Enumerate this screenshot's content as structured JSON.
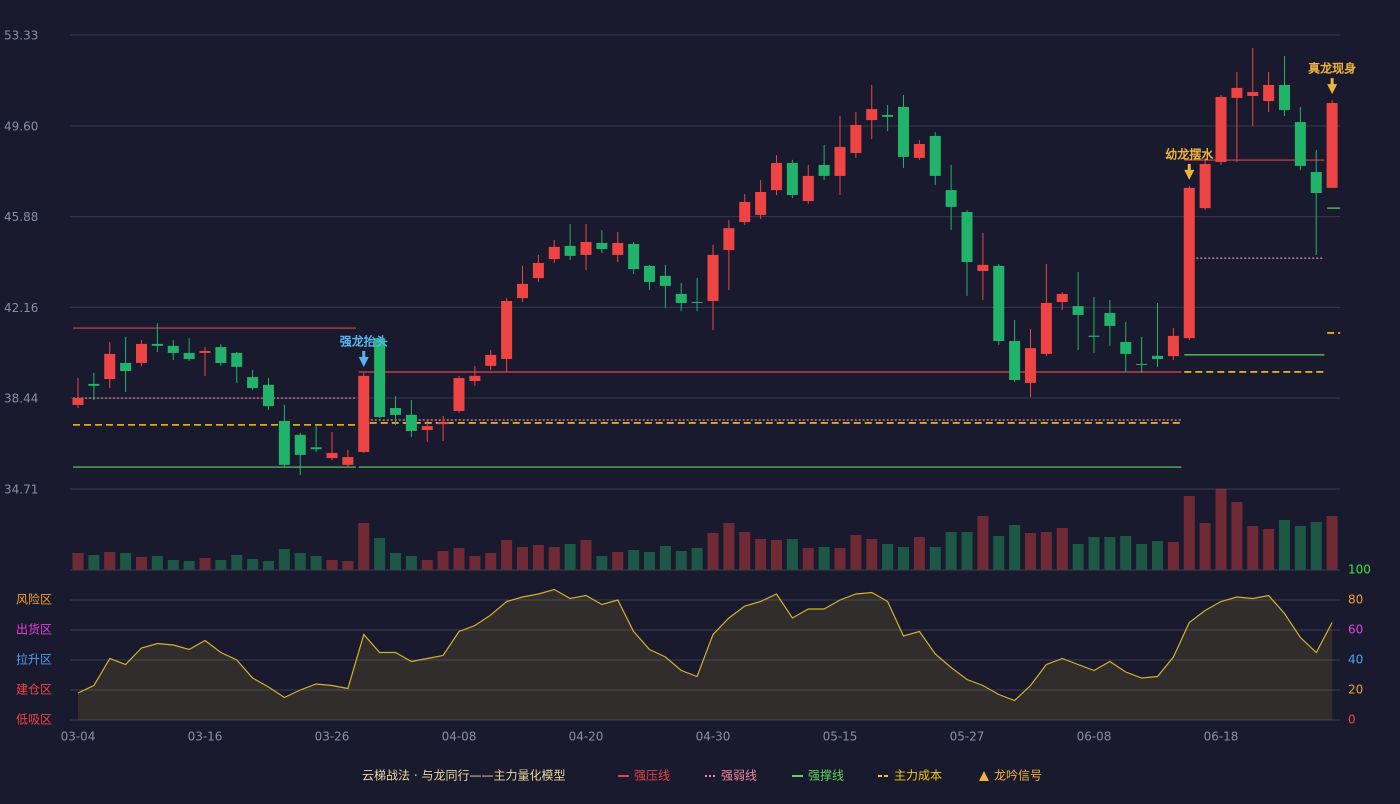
{
  "chart_data": [
    {
      "type": "candlestick",
      "title": "云梯战法 · 与龙同行——主力量化模型",
      "categories": [
        "03-04",
        null,
        null,
        null,
        null,
        null,
        null,
        null,
        "03-16",
        null,
        null,
        null,
        null,
        null,
        null,
        null,
        "03-26",
        null,
        null,
        null,
        null,
        null,
        null,
        null,
        "04-08",
        null,
        null,
        null,
        null,
        null,
        null,
        null,
        "04-20",
        null,
        null,
        null,
        null,
        null,
        null,
        null,
        "04-30",
        null,
        null,
        null,
        null,
        null,
        null,
        null,
        "05-15",
        null,
        null,
        null,
        null,
        null,
        null,
        null,
        "05-27",
        null,
        null,
        null,
        null,
        null,
        null,
        null,
        "06-08",
        null,
        null,
        null,
        null,
        null,
        null,
        null,
        "06-18",
        null,
        null,
        null,
        null,
        null,
        null,
        null
      ],
      "open": [
        38.16,
        39.02,
        39.22,
        39.88,
        39.88,
        40.66,
        40.58,
        40.29,
        40.29,
        40.53,
        40.29,
        39.3,
        38.98,
        37.5,
        36.93,
        36.42,
        35.98,
        35.7,
        36.23,
        40.9,
        38.03,
        37.75,
        37.13,
        37.37,
        37.91,
        39.14,
        39.76,
        40.04,
        42.54,
        43.36,
        44.14,
        44.68,
        44.31,
        44.8,
        44.31,
        44.76,
        43.86,
        43.45,
        42.71,
        42.38,
        42.42,
        44.51,
        45.66,
        45.95,
        46.97,
        48.08,
        46.52,
        48.0,
        47.55,
        48.49,
        49.84,
        50.05,
        50.38,
        48.29,
        49.19,
        46.97,
        46.07,
        43.65,
        43.86,
        40.78,
        39.06,
        40.25,
        42.38,
        42.21,
        41.0,
        41.93,
        40.74,
        39.84,
        40.17,
        40.16,
        40.9,
        46.23,
        48.12,
        50.75,
        50.83,
        50.62,
        51.28,
        49.76,
        47.71,
        47.06
      ],
      "high": [
        39.26,
        39.47,
        40.74,
        40.95,
        40.82,
        41.52,
        40.82,
        40.9,
        40.53,
        40.66,
        40.33,
        39.59,
        39.26,
        38.16,
        37.01,
        37.34,
        37.05,
        36.31,
        39.47,
        40.95,
        38.52,
        38.36,
        37.54,
        37.7,
        39.35,
        39.76,
        40.41,
        42.54,
        43.86,
        44.31,
        44.92,
        45.58,
        45.58,
        45.33,
        45.25,
        44.84,
        43.9,
        43.9,
        43.16,
        43.36,
        44.72,
        45.74,
        46.81,
        47.38,
        48.41,
        48.21,
        48.0,
        48.82,
        50.01,
        50.17,
        51.28,
        50.46,
        50.87,
        49.02,
        49.35,
        48.0,
        46.15,
        45.21,
        43.94,
        41.64,
        41.27,
        43.94,
        42.79,
        43.61,
        42.58,
        42.46,
        41.56,
        40.95,
        42.34,
        41.31,
        47.14,
        48.21,
        50.87,
        51.81,
        52.8,
        51.81,
        52.47,
        50.38,
        48.61,
        50.66
      ],
      "low": [
        38.03,
        38.36,
        38.85,
        38.69,
        39.76,
        40.33,
        40.0,
        39.96,
        39.35,
        39.76,
        39.06,
        38.77,
        37.95,
        35.57,
        35.29,
        36.23,
        35.9,
        35.61,
        36.19,
        37.62,
        37.34,
        36.84,
        36.64,
        36.68,
        37.83,
        38.94,
        39.59,
        39.51,
        42.38,
        43.2,
        43.98,
        44.1,
        43.69,
        44.39,
        44.02,
        43.53,
        42.87,
        42.13,
        42.01,
        42.01,
        41.23,
        42.87,
        45.54,
        45.79,
        46.77,
        46.64,
        46.4,
        47.38,
        46.77,
        48.29,
        49.06,
        49.39,
        47.88,
        48.21,
        47.18,
        45.33,
        42.63,
        42.46,
        40.62,
        39.1,
        38.48,
        40.16,
        42.05,
        40.41,
        40.29,
        40.58,
        39.51,
        39.47,
        39.72,
        40.0,
        40.82,
        46.15,
        48.0,
        48.12,
        49.6,
        50.17,
        50.01,
        47.79,
        44.31,
        47.06
      ],
      "close": [
        38.44,
        38.94,
        40.25,
        39.55,
        40.66,
        40.58,
        40.29,
        40.04,
        40.37,
        39.88,
        39.72,
        38.85,
        38.11,
        35.7,
        36.11,
        36.34,
        36.19,
        36.02,
        39.35,
        37.66,
        37.75,
        37.09,
        37.29,
        37.46,
        39.26,
        39.35,
        40.21,
        42.42,
        43.12,
        43.98,
        44.64,
        44.27,
        44.84,
        44.55,
        44.8,
        43.73,
        43.2,
        43.04,
        42.34,
        42.34,
        44.31,
        45.41,
        46.48,
        46.89,
        48.08,
        46.77,
        47.55,
        47.55,
        48.74,
        49.64,
        50.29,
        49.97,
        48.33,
        48.86,
        47.55,
        46.28,
        44.02,
        43.9,
        40.78,
        39.18,
        40.49,
        42.34,
        42.71,
        41.85,
        40.95,
        41.4,
        40.25,
        39.8,
        40.04,
        40.99,
        47.06,
        48.04,
        50.79,
        51.16,
        50.99,
        51.28,
        50.25,
        47.96,
        46.85,
        50.54
      ],
      "up_color": "#ef4444",
      "down_color": "#22b36b",
      "ylim": [
        34.71,
        53.33
      ],
      "yticks": [
        34.71,
        38.44,
        42.16,
        45.88,
        {
          "value": 49.6,
          "label": "49.60"
        },
        53.33
      ],
      "grid": true,
      "levels": [
        {
          "name": "强压线",
          "color": "#e0434b",
          "dash": "solid",
          "segments": [
            {
              "from": 0,
              "to": 17,
              "value": 41.31
            },
            {
              "from": 18,
              "to": 69,
              "value": 39.51
            },
            {
              "from": 70,
              "to": 78,
              "value": 48.2
            }
          ]
        },
        {
          "name": "强弱线",
          "color": "#f08a9a",
          "dash": "dotted",
          "segments": [
            {
              "from": 0,
              "to": 17,
              "value": 38.44
            },
            {
              "from": 18,
              "to": 69,
              "value": 37.54
            },
            {
              "from": 70,
              "to": 78,
              "value": 44.18
            }
          ]
        },
        {
          "name": "强撑线",
          "color": "#5fd35f",
          "dash": "solid",
          "segments": [
            {
              "from": 0,
              "to": 17,
              "value": 35.61
            },
            {
              "from": 18,
              "to": 69,
              "value": 35.61
            },
            {
              "from": 70,
              "to": 78,
              "value": 40.21
            },
            {
              "from": 79,
              "to": 79,
              "value": 46.23
            }
          ]
        },
        {
          "name": "主力成本",
          "color": "#f5c518",
          "dash": "dashed",
          "segments": [
            {
              "from": 0,
              "to": 17,
              "value": 37.34
            },
            {
              "from": 18,
              "to": 69,
              "value": 37.42
            },
            {
              "from": 70,
              "to": 78,
              "value": 39.51
            },
            {
              "from": 79,
              "to": 79,
              "value": 41.11
            }
          ]
        }
      ],
      "annotations": [
        {
          "index": 18,
          "label": "强龙抬头",
          "color": "#5ab4f0"
        },
        {
          "index": 70,
          "label": "幼龙摆水",
          "color": "#f0b43c"
        },
        {
          "index": 79,
          "label": "真龙现身",
          "color": "#f0b43c"
        }
      ],
      "signal_name": "龙吟信号",
      "signal_color": "#f0b43c"
    },
    {
      "type": "bar",
      "values": [
        17,
        15,
        18,
        17,
        13,
        14,
        10,
        9,
        12,
        10,
        15,
        11,
        9,
        21,
        17,
        14,
        10,
        9,
        47,
        32,
        17,
        14,
        10,
        19,
        22,
        14,
        17,
        30,
        23,
        25,
        23,
        26,
        30,
        14,
        18,
        20,
        18,
        24,
        19,
        22,
        37,
        47,
        38,
        31,
        30,
        31,
        22,
        23,
        22,
        35,
        31,
        26,
        23,
        33,
        23,
        38,
        38,
        54,
        34,
        45,
        37,
        38,
        42,
        26,
        33,
        33,
        34,
        26,
        29,
        28,
        74,
        47,
        81,
        68,
        44,
        41,
        50,
        44,
        48,
        54
      ],
      "ylim": [
        0,
        81
      ]
    },
    {
      "type": "area",
      "values": [
        18,
        23,
        41,
        37,
        48,
        51,
        50,
        47,
        53,
        45,
        40,
        28,
        22,
        15,
        20,
        24,
        23,
        21,
        57,
        45,
        45,
        39,
        41,
        43,
        59,
        63,
        70,
        79,
        82,
        84,
        87,
        81,
        83,
        77,
        80,
        59,
        47,
        42,
        33,
        29,
        57,
        68,
        76,
        79,
        84,
        68,
        74,
        74,
        80,
        84,
        85,
        79,
        56,
        59,
        44,
        35,
        27,
        23,
        17,
        13,
        23,
        37,
        41,
        37,
        33,
        39,
        32,
        28,
        29,
        42,
        65,
        73,
        79,
        82,
        81,
        83,
        71,
        55,
        45,
        65
      ],
      "color": "#d4b02a",
      "ylim": [
        0,
        100
      ],
      "yticks": [
        0,
        20,
        40,
        60,
        80,
        100
      ],
      "ytick_colors": [
        "#ef4444",
        "#f0a030",
        "#4a9ff0",
        "#e040e0",
        "#f0a030",
        "#3ee03e"
      ],
      "zones": [
        {
          "value": 80,
          "label": "风险区",
          "color": "#f0a030"
        },
        {
          "value": 60,
          "label": "出货区",
          "color": "#e040e0"
        },
        {
          "value": 40,
          "label": "拉升区",
          "color": "#4a9ff0"
        },
        {
          "value": 20,
          "label": "建仓区",
          "color": "#ef4444"
        },
        {
          "value": 0,
          "label": "低吸区",
          "color": "#ef4444"
        }
      ]
    }
  ]
}
